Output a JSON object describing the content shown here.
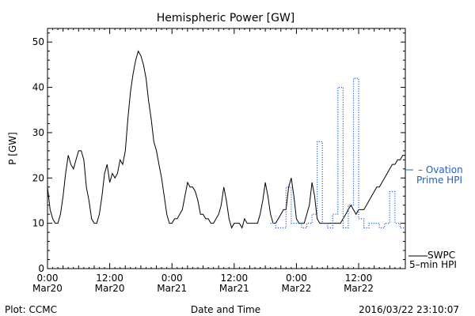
{
  "chart_data": {
    "type": "line",
    "title": "Hemispheric Power [GW]",
    "ylabel": "P [GW]",
    "xlabel": "Date and Time",
    "ylim": [
      0,
      53
    ],
    "xlim_hours": [
      0,
      69
    ],
    "y_ticks": [
      0,
      10,
      20,
      30,
      40,
      50
    ],
    "x_ticks": [
      {
        "hour": 0,
        "time": "0:00",
        "date": "Mar20"
      },
      {
        "hour": 12,
        "time": "12:00",
        "date": "Mar20"
      },
      {
        "hour": 24,
        "time": "0:00",
        "date": "Mar21"
      },
      {
        "hour": 36,
        "time": "12:00",
        "date": "Mar21"
      },
      {
        "hour": 48,
        "time": "0:00",
        "date": "Mar22"
      },
      {
        "hour": 60,
        "time": "12:00",
        "date": "Mar22"
      }
    ],
    "series": [
      {
        "name": "SWPC 5-min HPI",
        "legend_lines": [
          "SWPC",
          "5-min HPI"
        ],
        "color": "#000000",
        "style": "solid",
        "x": [
          0,
          0.5,
          1,
          1.5,
          2,
          2.5,
          3,
          3.5,
          4,
          4.5,
          5,
          5.5,
          6,
          6.5,
          7,
          7.5,
          8,
          8.5,
          9,
          9.5,
          10,
          10.5,
          11,
          11.5,
          12,
          12.5,
          13,
          13.5,
          14,
          14.5,
          15,
          15.5,
          16,
          16.5,
          17,
          17.5,
          18,
          18.5,
          19,
          19.5,
          20,
          20.5,
          21,
          21.5,
          22,
          22.5,
          23,
          23.5,
          24,
          24.5,
          25,
          25.5,
          26,
          26.5,
          27,
          27.5,
          28,
          28.5,
          29,
          29.5,
          30,
          30.5,
          31,
          31.5,
          32,
          32.5,
          33,
          33.5,
          34,
          34.5,
          35,
          35.5,
          36,
          36.5,
          37,
          37.5,
          38,
          38.5,
          39,
          39.5,
          40,
          40.5,
          41,
          41.5,
          42,
          42.5,
          43,
          43.5,
          44,
          44.5,
          45,
          45.5,
          46,
          46.5,
          47,
          47.5,
          48,
          48.5,
          49,
          49.5,
          50,
          50.5,
          51,
          51.5,
          52,
          52.5,
          53,
          53.5,
          54,
          54.5,
          55,
          55.5,
          56,
          56.5,
          57,
          57.5,
          58,
          58.5,
          59,
          59.5,
          60,
          60.5,
          61,
          61.5,
          62,
          62.5,
          63,
          63.5,
          64,
          64.5,
          65,
          65.5,
          66,
          66.5,
          67,
          67.5,
          68,
          68.5,
          69
        ],
        "values": [
          18,
          13,
          11,
          10,
          10,
          12,
          16,
          21,
          25,
          23,
          22,
          24,
          26,
          26,
          24,
          18,
          15,
          11,
          10,
          10,
          12,
          16,
          21,
          23,
          19,
          21,
          20,
          21,
          24,
          23,
          26,
          33,
          39,
          43,
          46,
          48,
          47,
          45,
          42,
          37,
          33,
          28,
          26,
          23,
          20,
          16,
          12,
          10,
          10,
          11,
          11,
          12,
          13,
          16,
          19,
          18,
          18,
          17,
          15,
          12,
          12,
          11,
          11,
          10,
          10,
          11,
          12,
          14,
          18,
          15,
          11,
          9,
          10,
          10,
          10,
          9,
          11,
          10,
          10,
          10,
          10,
          10,
          12,
          15,
          19,
          16,
          12,
          10,
          10,
          11,
          12,
          13,
          13,
          18,
          20,
          16,
          11,
          10,
          10,
          10,
          12,
          14,
          19,
          16,
          11,
          10,
          10,
          10,
          10,
          10,
          10,
          10,
          10,
          10,
          11,
          12,
          13,
          14,
          13,
          12,
          13,
          13,
          13,
          14,
          15,
          16,
          17,
          18,
          18,
          19,
          20,
          21,
          22,
          23,
          23,
          24,
          24,
          25,
          25
        ],
        "note": ""
      },
      {
        "name": "Ovation Prime HPI",
        "legend_lines": [
          "Ovation",
          "Prime HPI"
        ],
        "color": "#1f5fd0",
        "style": "dotted",
        "x": [
          43,
          44,
          44,
          45,
          45,
          46,
          46,
          47,
          47,
          48,
          48,
          49,
          49,
          50,
          50,
          51,
          51,
          52,
          52,
          53,
          53,
          54,
          54,
          55,
          55,
          56,
          56,
          57,
          57,
          58,
          58,
          59,
          59,
          60,
          60,
          61,
          61,
          62,
          62,
          63,
          63,
          64,
          64,
          65,
          65,
          66,
          66,
          67,
          67,
          68,
          68,
          69
        ],
        "values": [
          10,
          10,
          9,
          9,
          9,
          9,
          18,
          18,
          10,
          10,
          10,
          10,
          9,
          9,
          10,
          10,
          12,
          12,
          28,
          28,
          10,
          10,
          9,
          9,
          12,
          12,
          40,
          40,
          9,
          9,
          14,
          14,
          42,
          42,
          11,
          11,
          9,
          9,
          10,
          10,
          10,
          10,
          9,
          9,
          10,
          10,
          17,
          17,
          10,
          10,
          9,
          9
        ]
      }
    ]
  },
  "footer": {
    "left": "Plot: CCMC",
    "right": "2016/03/22 23:10:07"
  },
  "legend": {
    "ovation_1": "– Ovation",
    "ovation_2": "Prime HPI",
    "swpc_1": "SWPC",
    "swpc_2": "5–min HPI"
  }
}
